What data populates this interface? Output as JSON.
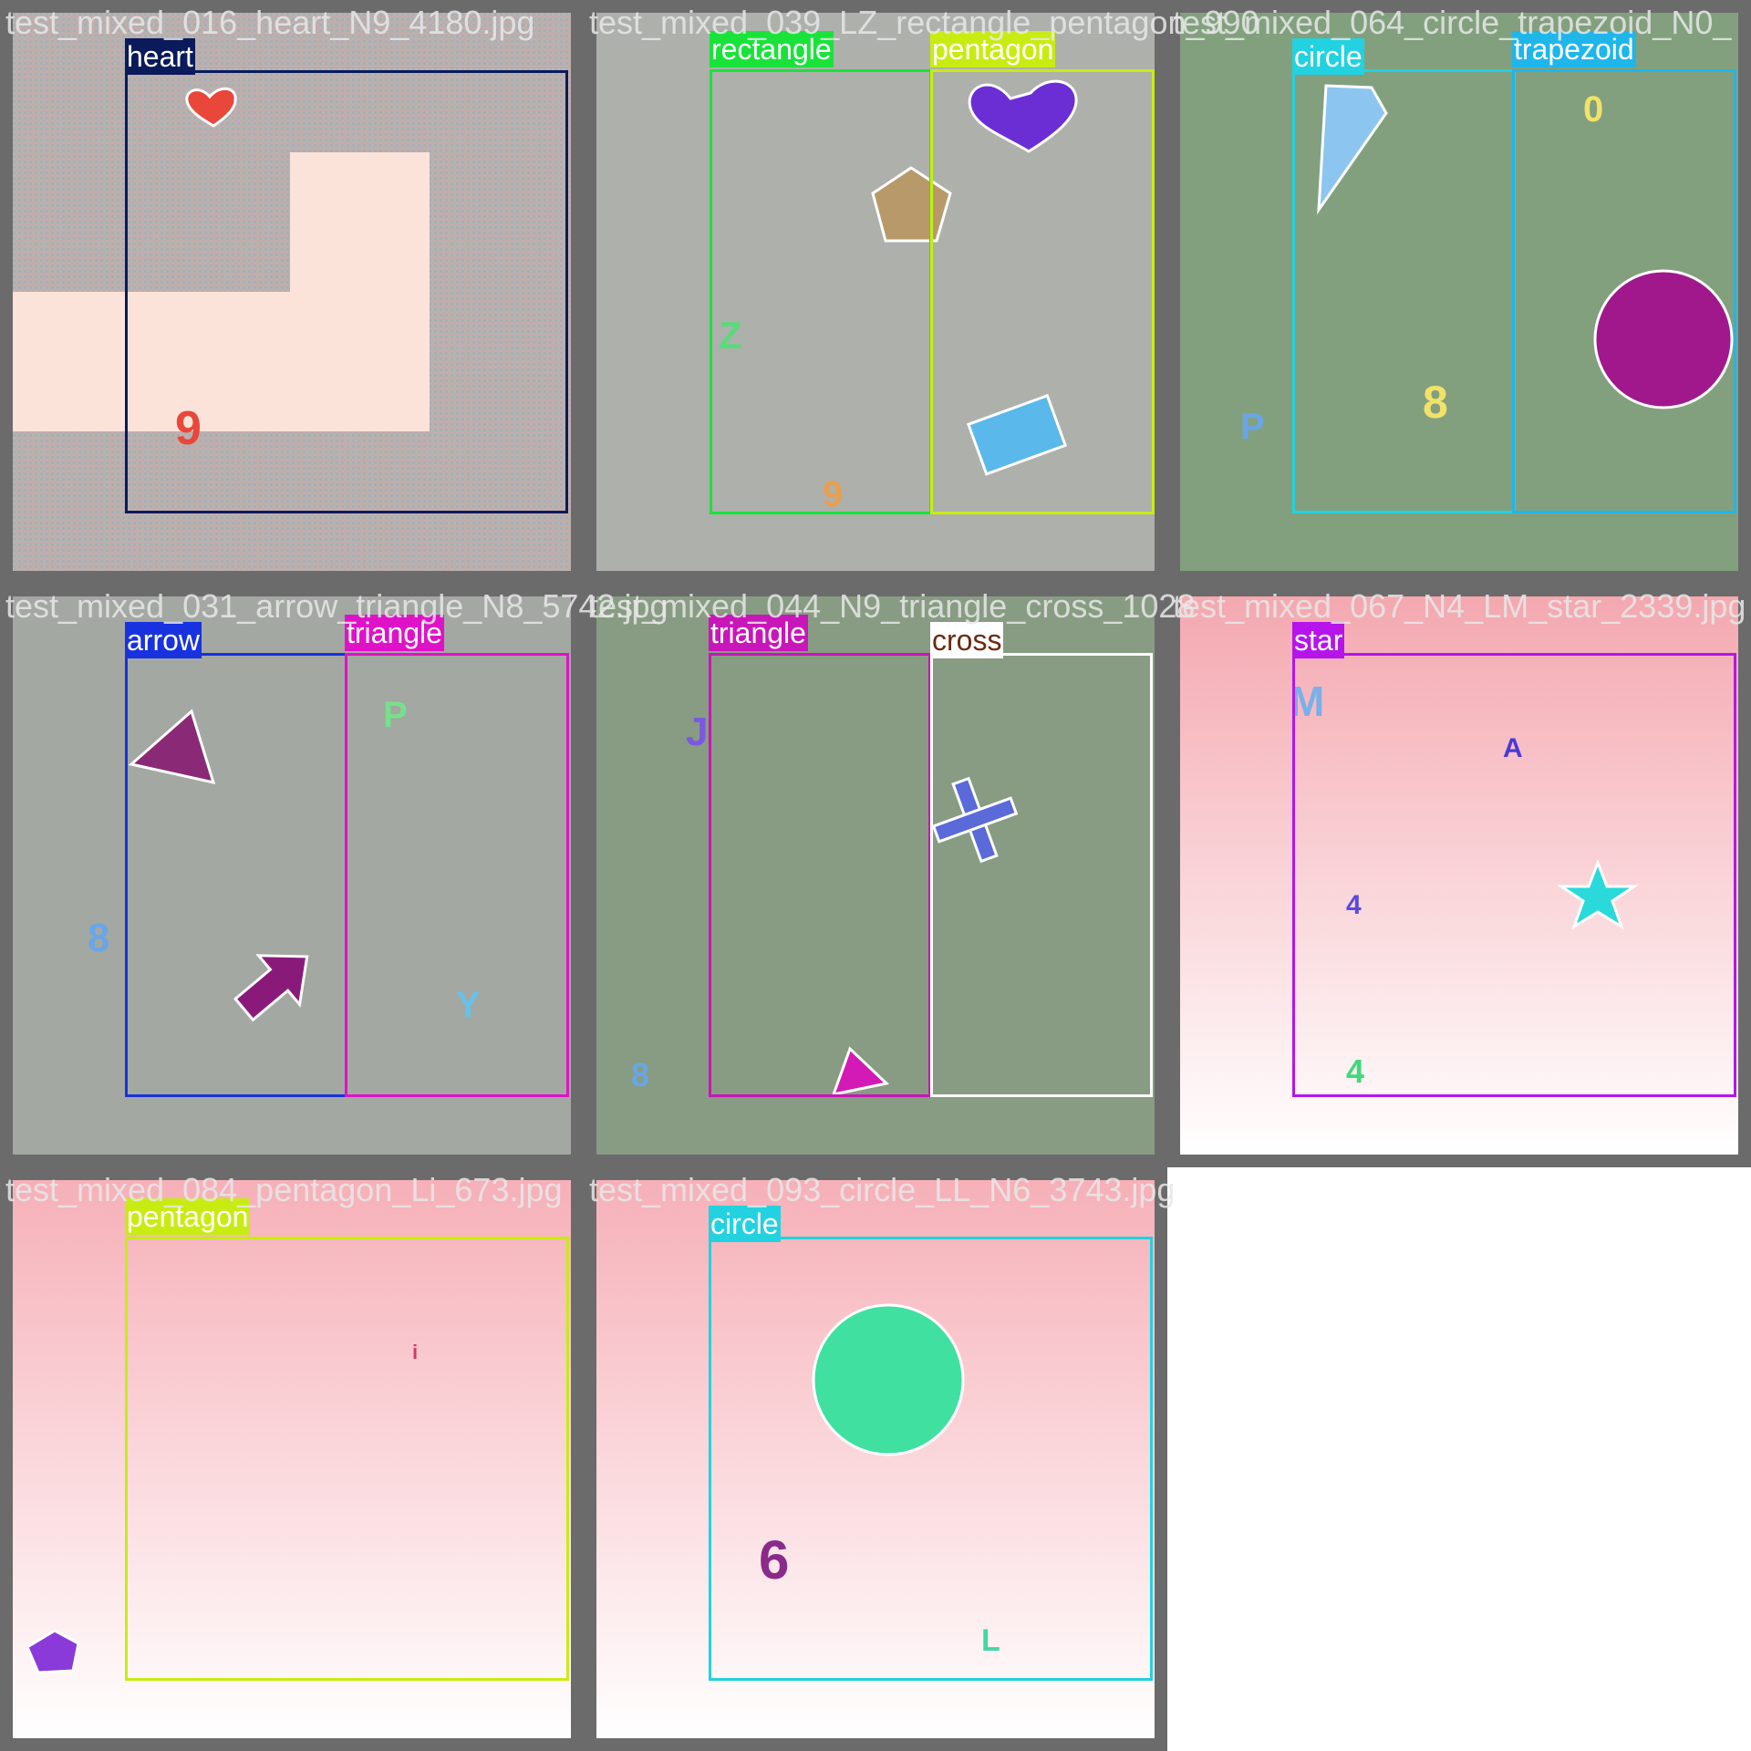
{
  "tiles": [
    {
      "filename": "test_mixed_016_heart_N9_4180.jpg",
      "detections": [
        {
          "label": "heart",
          "color": "#0a1a5a"
        }
      ],
      "glyphs": [
        "9"
      ]
    },
    {
      "filename": "test_mixed_039_LZ_rectangle_pentagon_990",
      "detections": [
        {
          "label": "rectangle",
          "color": "#19e33a"
        },
        {
          "label": "pentagon",
          "color": "#c8ec12"
        }
      ],
      "glyphs": [
        "Z",
        "9"
      ]
    },
    {
      "filename": "test_mixed_064_circle_trapezoid_N0_",
      "detections": [
        {
          "label": "circle",
          "color": "#22d2e0"
        },
        {
          "label": "trapezoid",
          "color": "#1fb6ea"
        }
      ],
      "glyphs": [
        "0",
        "8",
        "P"
      ]
    },
    {
      "filename": "test_mixed_031_arrow_triangle_N8_5742.jpg",
      "detections": [
        {
          "label": "arrow",
          "color": "#1732de"
        },
        {
          "label": "triangle",
          "color": "#df12c8"
        }
      ],
      "glyphs": [
        "P",
        "8",
        "Y"
      ]
    },
    {
      "filename": "test_mixed_044_N9_triangle_cross_1028",
      "detections": [
        {
          "label": "triangle",
          "color": "#c816b8"
        },
        {
          "label": "cross",
          "color": "#ffffff"
        }
      ],
      "glyphs": [
        "J",
        "8"
      ]
    },
    {
      "filename": "test_mixed_067_N4_LM_star_2339.jpg",
      "detections": [
        {
          "label": "star",
          "color": "#b515ea"
        }
      ],
      "glyphs": [
        "M",
        "A",
        "4",
        "4"
      ]
    },
    {
      "filename": "test_mixed_084_pentagon_Li_673.jpg",
      "detections": [
        {
          "label": "pentagon",
          "color": "#c8ec12"
        }
      ],
      "glyphs": [
        "i"
      ]
    },
    {
      "filename": "test_mixed_093_circle_LL_N6_3743.jpg",
      "detections": [
        {
          "label": "circle",
          "color": "#22d2e0"
        }
      ],
      "glyphs": [
        "6",
        "L"
      ]
    }
  ]
}
